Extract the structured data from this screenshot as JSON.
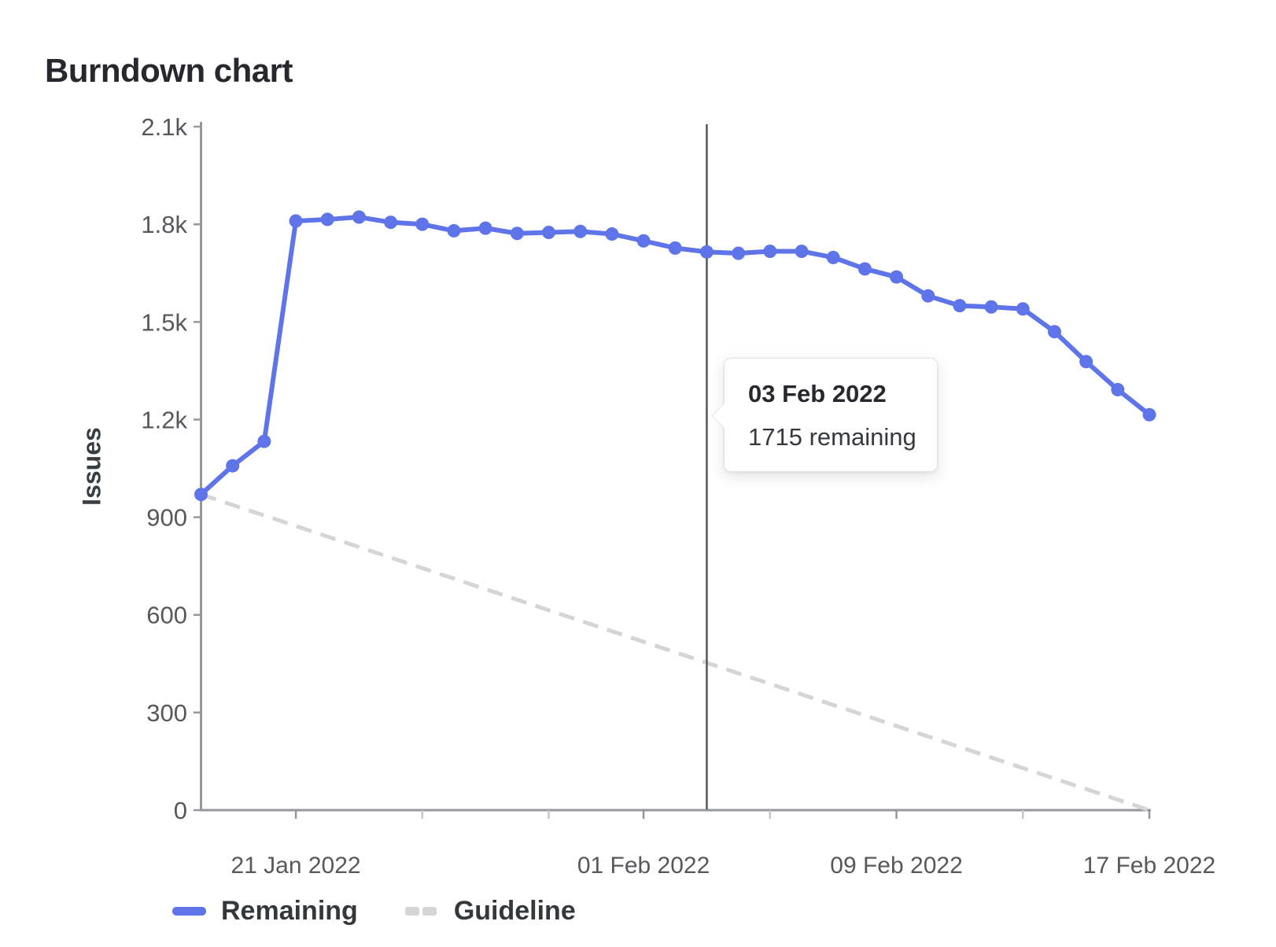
{
  "header": {
    "title": "Burndown chart"
  },
  "chart_data": {
    "type": "line",
    "title": "Burndown chart",
    "xlabel": "",
    "ylabel": "Issues",
    "ylim": [
      0,
      2100
    ],
    "grid": false,
    "legend_position": "bottom-left",
    "yticks": [
      {
        "value": 0,
        "label": "0"
      },
      {
        "value": 300,
        "label": "300"
      },
      {
        "value": 600,
        "label": "600"
      },
      {
        "value": 900,
        "label": "900"
      },
      {
        "value": 1200,
        "label": "1.2k"
      },
      {
        "value": 1500,
        "label": "1.5k"
      },
      {
        "value": 1800,
        "label": "1.8k"
      },
      {
        "value": 2100,
        "label": "2.1k"
      }
    ],
    "categories": [
      "18 Jan 2022",
      "19 Jan 2022",
      "20 Jan 2022",
      "21 Jan 2022",
      "22 Jan 2022",
      "23 Jan 2022",
      "24 Jan 2022",
      "25 Jan 2022",
      "26 Jan 2022",
      "27 Jan 2022",
      "28 Jan 2022",
      "29 Jan 2022",
      "30 Jan 2022",
      "31 Jan 2022",
      "01 Feb 2022",
      "02 Feb 2022",
      "03 Feb 2022",
      "04 Feb 2022",
      "05 Feb 2022",
      "06 Feb 2022",
      "07 Feb 2022",
      "08 Feb 2022",
      "09 Feb 2022",
      "10 Feb 2022",
      "11 Feb 2022",
      "12 Feb 2022",
      "13 Feb 2022",
      "14 Feb 2022",
      "15 Feb 2022",
      "16 Feb 2022",
      "17 Feb 2022"
    ],
    "xticks": [
      {
        "index": 3,
        "label": "21 Jan 2022"
      },
      {
        "index": 7,
        "label": ""
      },
      {
        "index": 11,
        "label": ""
      },
      {
        "index": 14,
        "label": "01 Feb 2022"
      },
      {
        "index": 18,
        "label": ""
      },
      {
        "index": 22,
        "label": "09 Feb 2022"
      },
      {
        "index": 26,
        "label": ""
      },
      {
        "index": 30,
        "label": "17 Feb 2022"
      }
    ],
    "series": [
      {
        "name": "Remaining",
        "style": "solid",
        "color": "#5e74e8",
        "show_points": true,
        "values": [
          970,
          1058,
          1133,
          1810,
          1815,
          1822,
          1806,
          1800,
          1780,
          1788,
          1772,
          1775,
          1778,
          1770,
          1749,
          1727,
          1715,
          1711,
          1717,
          1717,
          1698,
          1663,
          1638,
          1580,
          1550,
          1546,
          1540,
          1470,
          1378,
          1292,
          1215
        ]
      },
      {
        "name": "Guideline",
        "style": "dashed",
        "color": "#d5d5d5",
        "show_points": false,
        "points": [
          {
            "index": 0,
            "value": 970
          },
          {
            "index": 30,
            "value": 0
          }
        ]
      }
    ],
    "today_marker": {
      "index": 16,
      "date": "03 Feb 2022",
      "color": "#53565a"
    },
    "tooltip": {
      "title": "03 Feb 2022",
      "text": "1715 remaining"
    }
  },
  "colors": {
    "remaining": "#5e74e8",
    "guideline": "#d5d5d5",
    "axis": "#94979b",
    "minor_tick": "#c4c6c8",
    "tick_text": "#56585b",
    "today_line": "#53565a"
  }
}
